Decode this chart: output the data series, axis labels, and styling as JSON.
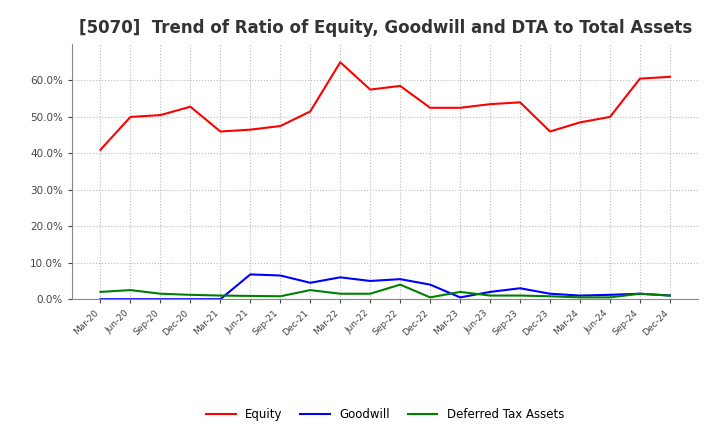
{
  "title": "[5070]  Trend of Ratio of Equity, Goodwill and DTA to Total Assets",
  "x_labels": [
    "Mar-20",
    "Jun-20",
    "Sep-20",
    "Dec-20",
    "Mar-21",
    "Jun-21",
    "Sep-21",
    "Dec-21",
    "Mar-22",
    "Jun-22",
    "Sep-22",
    "Dec-22",
    "Mar-23",
    "Jun-23",
    "Sep-23",
    "Dec-23",
    "Mar-24",
    "Jun-24",
    "Sep-24",
    "Dec-24"
  ],
  "equity": [
    41.0,
    50.0,
    50.5,
    52.8,
    46.0,
    46.5,
    47.5,
    51.5,
    65.0,
    57.5,
    58.5,
    52.5,
    52.5,
    53.5,
    54.0,
    46.0,
    48.5,
    50.0,
    60.5,
    61.0
  ],
  "goodwill": [
    0.0,
    0.0,
    0.0,
    0.0,
    0.0,
    6.8,
    6.5,
    4.5,
    6.0,
    5.0,
    5.5,
    4.0,
    0.5,
    2.0,
    3.0,
    1.5,
    1.0,
    1.2,
    1.5,
    1.0
  ],
  "dta": [
    2.0,
    2.5,
    1.5,
    1.2,
    1.0,
    0.9,
    0.8,
    2.5,
    1.5,
    1.5,
    4.0,
    0.5,
    2.0,
    1.0,
    1.0,
    0.8,
    0.5,
    0.5,
    1.5,
    1.0
  ],
  "equity_color": "#FF0000",
  "goodwill_color": "#0000FF",
  "dta_color": "#008000",
  "ylim": [
    0,
    70
  ],
  "yticks": [
    0,
    10,
    20,
    30,
    40,
    50,
    60
  ],
  "ytick_labels": [
    "0.0%",
    "10.0%",
    "20.0%",
    "30.0%",
    "40.0%",
    "50.0%",
    "60.0%"
  ],
  "background_color": "#FFFFFF",
  "grid_color": "#BBBBBB",
  "title_fontsize": 12,
  "legend_labels": [
    "Equity",
    "Goodwill",
    "Deferred Tax Assets"
  ]
}
